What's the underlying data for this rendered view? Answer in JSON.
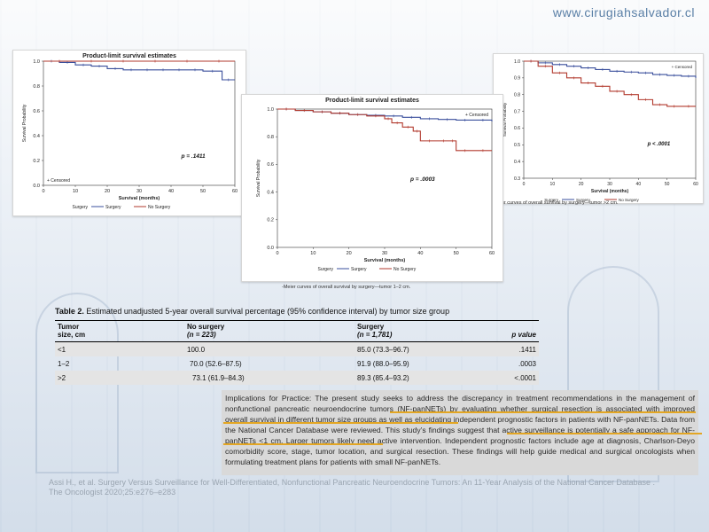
{
  "site": "www.cirugiahsalvador.cl",
  "charts": [
    {
      "title": "Product-limit survival estimates",
      "ylabel": "Survival Probability",
      "xlabel": "Survival (months)",
      "p_value": "p = .1411",
      "legend_censored": "+ Censored",
      "legend": [
        "Surgery",
        "Surgery",
        "No Surgery"
      ],
      "caption": ""
    },
    {
      "title": "Product-limit survival estimates",
      "ylabel": "Survival Probability",
      "xlabel": "Survival (months)",
      "p_value": "p = .0003",
      "legend_censored": "+ Censored",
      "legend": [
        "Surgery",
        "Surgery",
        "No Surgery"
      ],
      "caption": "-Meier curves of overall survival by surgery—tumor 1–2 cm."
    },
    {
      "title": "",
      "ylabel": "Survival Probability",
      "xlabel": "Survival (months)",
      "p_value": "p < .0001",
      "legend_censored": "+ Censored",
      "legend": [
        "Surgery",
        "Surgery",
        "No Surgery"
      ],
      "caption": "Meier curves of overall survival by surgery—tumor >2 cm."
    }
  ],
  "chart_data": [
    {
      "type": "line",
      "title": "Product-limit survival estimates",
      "xlabel": "Survival (months)",
      "ylabel": "Survival Probability",
      "xlim": [
        0,
        60
      ],
      "ylim": [
        0,
        1
      ],
      "xticks": [
        "0",
        "10",
        "20",
        "30",
        "40",
        "50",
        "60"
      ],
      "yticks": [
        "0.0",
        "0.2",
        "0.4",
        "0.6",
        "0.8",
        "1.0"
      ],
      "series": [
        {
          "name": "Surgery",
          "color": "#3a4f9c",
          "x": [
            0,
            5,
            10,
            15,
            20,
            25,
            30,
            35,
            40,
            45,
            50,
            56,
            60
          ],
          "y": [
            1.0,
            0.99,
            0.97,
            0.96,
            0.94,
            0.93,
            0.93,
            0.93,
            0.93,
            0.93,
            0.92,
            0.85,
            0.85
          ]
        },
        {
          "name": "No Surgery",
          "color": "#b23a2e",
          "x": [
            0,
            10,
            20,
            30,
            40,
            50,
            60
          ],
          "y": [
            1.0,
            1.0,
            1.0,
            1.0,
            1.0,
            1.0,
            1.0
          ]
        }
      ],
      "annotation": "p = .1411"
    },
    {
      "type": "line",
      "title": "Product-limit survival estimates",
      "xlabel": "Survival (months)",
      "ylabel": "Survival Probability",
      "xlim": [
        0,
        60
      ],
      "ylim": [
        0,
        1
      ],
      "xticks": [
        "0",
        "10",
        "20",
        "30",
        "40",
        "50",
        "60"
      ],
      "yticks": [
        "0.0",
        "0.2",
        "0.4",
        "0.6",
        "0.8",
        "1.0"
      ],
      "series": [
        {
          "name": "Surgery",
          "color": "#3a4f9c",
          "x": [
            0,
            5,
            10,
            15,
            20,
            25,
            30,
            35,
            40,
            45,
            50,
            55,
            60
          ],
          "y": [
            1.0,
            0.99,
            0.98,
            0.97,
            0.96,
            0.955,
            0.95,
            0.94,
            0.93,
            0.925,
            0.92,
            0.92,
            0.91
          ]
        },
        {
          "name": "No Surgery",
          "color": "#b23a2e",
          "x": [
            0,
            5,
            10,
            15,
            20,
            25,
            30,
            32,
            35,
            38,
            40,
            45,
            48,
            50,
            55,
            60
          ],
          "y": [
            1.0,
            0.99,
            0.98,
            0.97,
            0.96,
            0.95,
            0.93,
            0.9,
            0.87,
            0.84,
            0.77,
            0.77,
            0.77,
            0.7,
            0.7,
            0.7
          ]
        }
      ],
      "annotation": "p = .0003"
    },
    {
      "type": "line",
      "title": "",
      "xlabel": "Survival (months)",
      "ylabel": "Survival Probability",
      "xlim": [
        0,
        60
      ],
      "ylim": [
        0.3,
        1.0
      ],
      "xticks": [
        "0",
        "10",
        "20",
        "30",
        "40",
        "50",
        "60"
      ],
      "yticks": [
        "0.3",
        "0.4",
        "0.5",
        "0.6",
        "0.7",
        "0.8",
        "0.9",
        "1.0"
      ],
      "series": [
        {
          "name": "Surgery",
          "color": "#3a4f9c",
          "x": [
            0,
            5,
            10,
            15,
            20,
            25,
            30,
            35,
            40,
            45,
            50,
            55,
            60
          ],
          "y": [
            1.0,
            0.99,
            0.98,
            0.97,
            0.96,
            0.95,
            0.94,
            0.935,
            0.93,
            0.92,
            0.915,
            0.91,
            0.9
          ]
        },
        {
          "name": "No Surgery",
          "color": "#b23a2e",
          "x": [
            0,
            5,
            10,
            15,
            20,
            25,
            30,
            35,
            40,
            45,
            50,
            55,
            60
          ],
          "y": [
            1.0,
            0.97,
            0.93,
            0.9,
            0.87,
            0.85,
            0.82,
            0.8,
            0.77,
            0.74,
            0.73,
            0.73,
            0.73
          ]
        }
      ],
      "annotation": "p < .0001"
    }
  ],
  "table": {
    "title_bold": "Table 2.",
    "title_rest": " Estimated unadjusted 5-year overall survival percentage (95% confidence interval) by tumor size group",
    "headers": {
      "c1a": "Tumor",
      "c1b": "size, cm",
      "c2a": "No surgery",
      "c2b": "(n = 223)",
      "c3a": "Surgery",
      "c3b": "(n = 1,781)",
      "c4": "p value"
    },
    "rows": [
      {
        "size": "<1",
        "no_surgery": "100.0",
        "surgery": "85.0 (73.3–96.7)",
        "p": ".1411"
      },
      {
        "size": "1–2",
        "no_surgery": "70.0 (52.6–87.5)",
        "surgery": "91.9 (88.0–95.9)",
        "p": ".0003"
      },
      {
        "size": ">2",
        "no_surgery": "73.1 (61.9–84.3)",
        "surgery": "89.3 (85.4–93.2)",
        "p": "<.0001"
      }
    ]
  },
  "implications": "Implications for Practice: The present study seeks to address the discrepancy in treatment recommendations in the management of nonfunctional pancreatic neuroendocrine tumors (NF-panNETs) by evaluating whether surgical resection is associated with improved overall survival in different tumor size groups as well as elucidating independent prognostic factors in patients with NF-panNETs. Data from the National Cancer Database were reviewed. This study’s findings suggest that active surveillance is potentially a safe approach for NF-panNETs <1 cm. Larger tumors likely need active intervention. Independent prognostic factors include age at diagnosis, Charlson-Deyo comorbidity score, stage, tumor location, and surgical resection. These findings will help guide medical and surgical oncologists when formulating treatment plans for patients with small NF-panNETs.",
  "reference": "Assi H., et al. Surgery Versus Surveillance for Well-Differentiated, Nonfunctional Pancreatic Neuroendocrine Tumors: An 11-Year Analysis of the National Cancer Database . The Oncologist 2020;25:e276–e283"
}
